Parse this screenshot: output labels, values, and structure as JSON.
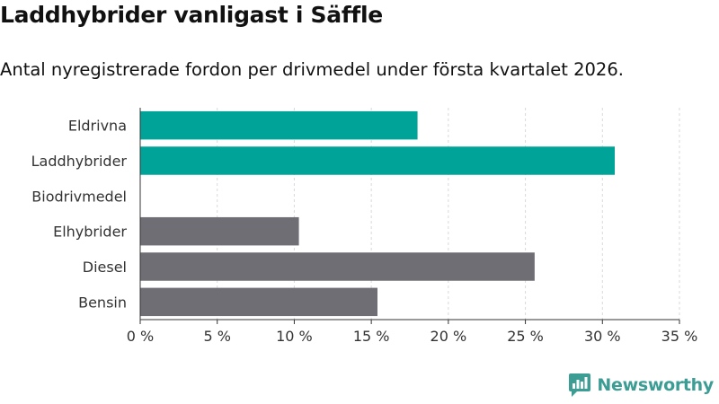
{
  "header": {
    "title": "Laddhybrider vanligast i Säffle",
    "subtitle": "Antal nyregistrerade fordon per drivmedel under första kvartalet 2026."
  },
  "brand": {
    "name": "Newsworthy",
    "icon": "newsworthy-logo-icon",
    "color": "#3c9d94"
  },
  "colors": {
    "highlight": "#00a397",
    "default": "#6e6e74",
    "grid": "#d9d9d9",
    "axis": "#333333"
  },
  "chart_data": {
    "type": "bar",
    "orientation": "horizontal",
    "categories": [
      "Eldrivna",
      "Laddhybrider",
      "Biodrivmedel",
      "Elhybrider",
      "Diesel",
      "Bensin"
    ],
    "values": [
      18.0,
      30.8,
      0,
      10.3,
      25.6,
      15.4
    ],
    "highlighted": [
      true,
      true,
      false,
      false,
      false,
      false
    ],
    "xlim": [
      0,
      35
    ],
    "xticks": [
      0,
      5,
      10,
      15,
      20,
      25,
      30,
      35
    ],
    "tick_suffix": " %",
    "grid": true,
    "title": "Laddhybrider vanligast i Säffle",
    "xlabel": "",
    "ylabel": ""
  }
}
